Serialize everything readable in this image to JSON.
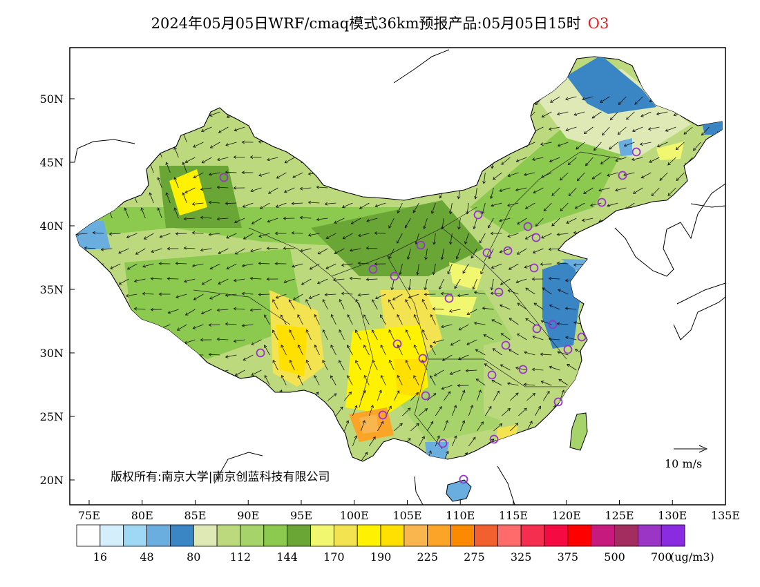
{
  "title": {
    "text": "2024年05月05日WRF/cmaq模式36km预报产品:05月05日15时",
    "pollutant": "O3",
    "pollutant_color": "#e02020"
  },
  "map": {
    "lat_labels": [
      "50N",
      "45N",
      "40N",
      "35N",
      "30N",
      "25N",
      "20N"
    ],
    "lon_labels": [
      "75E",
      "80E",
      "85E",
      "90E",
      "95E",
      "100E",
      "105E",
      "110E",
      "115E",
      "120E",
      "125E",
      "130E",
      "135E"
    ],
    "copyright": "版权所有:南京大学|南京创蓝科技有限公司",
    "vector_reference": "10 m/s"
  },
  "legend": {
    "colors": [
      "#ffffff",
      "#d4eefb",
      "#9ed8f4",
      "#6aaee0",
      "#3a86c4",
      "#dfe9b6",
      "#bcd97e",
      "#a6d46a",
      "#8cc94f",
      "#6aa636",
      "#f2f770",
      "#f4e350",
      "#fff200",
      "#ffe000",
      "#f9b54e",
      "#fba428",
      "#fc8a00",
      "#f2602f",
      "#ff6b6b",
      "#f52d4e",
      "#f50a42",
      "#ff0000",
      "#c61a7f",
      "#a32d5e",
      "#9a35c6",
      "#8a2be2"
    ],
    "labels": [
      "16",
      "48",
      "80",
      "112",
      "144",
      "170",
      "190",
      "225",
      "275",
      "325",
      "375",
      "500",
      "700"
    ],
    "unit": "(ug/m3)"
  },
  "markers": {
    "color": "#9932cc"
  }
}
